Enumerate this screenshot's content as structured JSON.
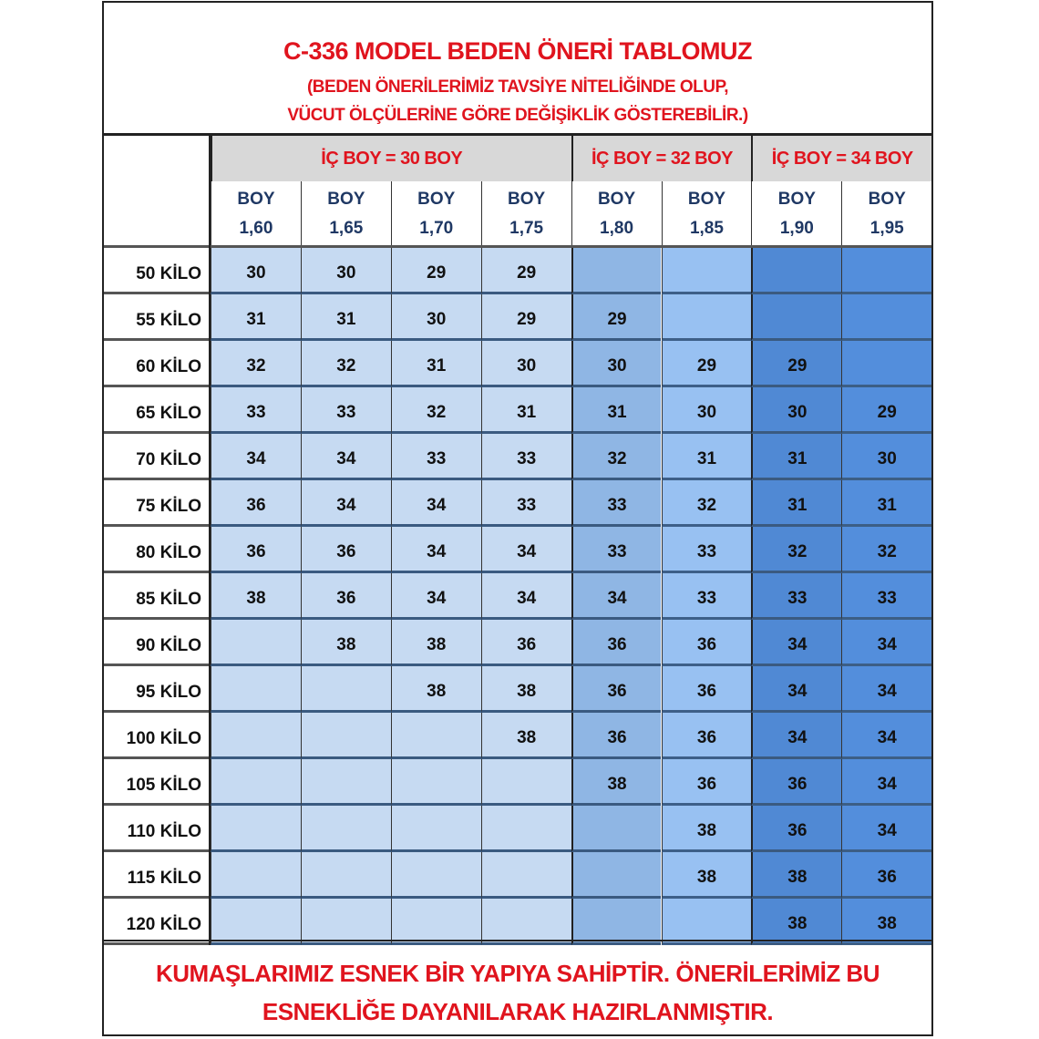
{
  "title": "C-336 MODEL BEDEN ÖNERİ TABLOMUZ",
  "subtitle_line1": "(BEDEN ÖNERİLERİMİZ TAVSİYE NİTELİĞİNDE OLUP,",
  "subtitle_line2": "VÜCUT ÖLÇÜLERİNE GÖRE DEĞİŞİKLİK GÖSTEREBİLİR.)",
  "groups": [
    {
      "label": "İÇ BOY =  30 BOY",
      "span": 4,
      "color": "#c6daf2"
    },
    {
      "label": "İÇ BOY = 32 BOY",
      "span": 2,
      "color": "#8fb6e4"
    },
    {
      "label": "İÇ BOY = 34 BOY",
      "span": 2,
      "color": "#5089d4"
    }
  ],
  "columns": [
    {
      "line1": "BOY",
      "line2": "1,60"
    },
    {
      "line1": "BOY",
      "line2": "1,65"
    },
    {
      "line1": "BOY",
      "line2": "1,70"
    },
    {
      "line1": "BOY",
      "line2": "1,75"
    },
    {
      "line1": "BOY",
      "line2": "1,80"
    },
    {
      "line1": "BOY",
      "line2": "1,85"
    },
    {
      "line1": "BOY",
      "line2": "1,90"
    },
    {
      "line1": "BOY",
      "line2": "1,95"
    }
  ],
  "rows": [
    {
      "label": "50 KİLO",
      "values": [
        "30",
        "30",
        "29",
        "29",
        "",
        "",
        "",
        ""
      ]
    },
    {
      "label": "55 KİLO",
      "values": [
        "31",
        "31",
        "30",
        "29",
        "29",
        "",
        "",
        ""
      ]
    },
    {
      "label": "60 KİLO",
      "values": [
        "32",
        "32",
        "31",
        "30",
        "30",
        "29",
        "29",
        ""
      ]
    },
    {
      "label": "65 KİLO",
      "values": [
        "33",
        "33",
        "32",
        "31",
        "31",
        "30",
        "30",
        "29"
      ]
    },
    {
      "label": "70 KİLO",
      "values": [
        "34",
        "34",
        "33",
        "33",
        "32",
        "31",
        "31",
        "30"
      ]
    },
    {
      "label": "75 KİLO",
      "values": [
        "36",
        "34",
        "34",
        "33",
        "33",
        "32",
        "31",
        "31"
      ]
    },
    {
      "label": "80 KİLO",
      "values": [
        "36",
        "36",
        "34",
        "34",
        "33",
        "33",
        "32",
        "32"
      ]
    },
    {
      "label": "85 KİLO",
      "values": [
        "38",
        "36",
        "34",
        "34",
        "34",
        "33",
        "33",
        "33"
      ]
    },
    {
      "label": "90 KİLO",
      "values": [
        "",
        "38",
        "38",
        "36",
        "36",
        "36",
        "34",
        "34"
      ]
    },
    {
      "label": "95 KİLO",
      "values": [
        "",
        "",
        "38",
        "38",
        "36",
        "36",
        "34",
        "34"
      ]
    },
    {
      "label": "100 KİLO",
      "values": [
        "",
        "",
        "",
        "38",
        "36",
        "36",
        "34",
        "34"
      ]
    },
    {
      "label": "105 KİLO",
      "values": [
        "",
        "",
        "",
        "",
        "38",
        "36",
        "36",
        "34"
      ]
    },
    {
      "label": "110 KİLO",
      "values": [
        "",
        "",
        "",
        "",
        "",
        "38",
        "36",
        "34"
      ]
    },
    {
      "label": "115 KİLO",
      "values": [
        "",
        "",
        "",
        "",
        "",
        "38",
        "38",
        "36"
      ]
    },
    {
      "label": "120 KİLO",
      "values": [
        "",
        "",
        "",
        "",
        "",
        "",
        "38",
        "38"
      ]
    }
  ],
  "footer_line1": "KUMAŞLARIMIZ ESNEK BİR YAPIYA SAHİPTİR. ÖNERİLERİMİZ BU",
  "footer_line2": "ESNEKLİĞE DAYANILARAK HAZIRLANMIŞTIR."
}
